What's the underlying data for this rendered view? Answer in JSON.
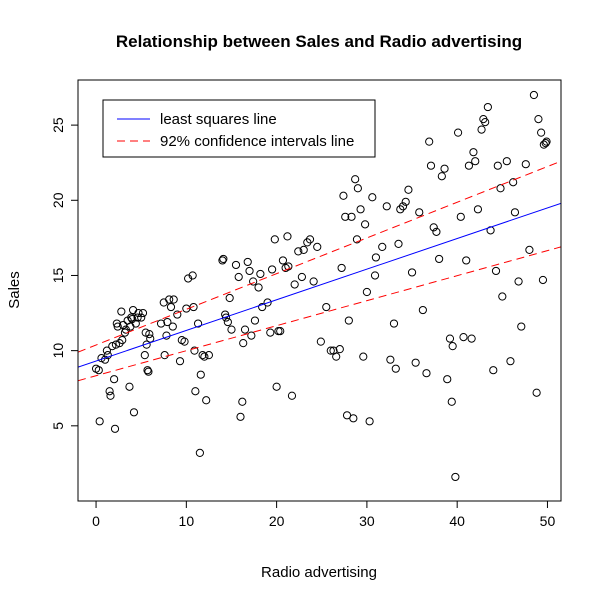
{
  "chart_data": {
    "type": "scatter",
    "title": "Relationship between Sales and Radio advertising",
    "xlabel": "Radio advertising",
    "ylabel": "Sales",
    "xlim": [
      -2,
      51.5
    ],
    "ylim": [
      0,
      28
    ],
    "xticks": [
      0,
      10,
      20,
      30,
      40,
      50
    ],
    "yticks": [
      5,
      10,
      15,
      20,
      25
    ],
    "grid": false,
    "legend_position": "top-left",
    "legend": [
      {
        "label": "least squares line",
        "color": "#0000ff",
        "style": "solid"
      },
      {
        "label": "92% confidence intervals line",
        "color": "#ff0000",
        "style": "dashed"
      }
    ],
    "lines": [
      {
        "name": "least squares line",
        "color": "#0000ff",
        "style": "solid",
        "points": [
          [
            -2,
            8.9
          ],
          [
            51.5,
            19.8
          ]
        ]
      },
      {
        "name": "upper 92% confidence interval",
        "color": "#ff0000",
        "style": "dashed",
        "points": [
          [
            -2,
            9.9
          ],
          [
            51.5,
            22.6
          ]
        ]
      },
      {
        "name": "lower 92% confidence interval",
        "color": "#ff0000",
        "style": "dashed",
        "points": [
          [
            -2,
            8.0
          ],
          [
            51.5,
            16.9
          ]
        ]
      }
    ],
    "series": [
      {
        "marker": "open-circle",
        "color": "#000000",
        "points": [
          [
            0.0,
            8.8
          ],
          [
            0.3,
            8.7
          ],
          [
            0.4,
            5.3
          ],
          [
            0.6,
            9.5
          ],
          [
            1.0,
            9.4
          ],
          [
            1.2,
            10.0
          ],
          [
            1.3,
            9.7
          ],
          [
            1.5,
            7.3
          ],
          [
            1.6,
            7.0
          ],
          [
            1.8,
            10.3
          ],
          [
            2.0,
            8.1
          ],
          [
            2.1,
            4.8
          ],
          [
            2.2,
            10.4
          ],
          [
            2.3,
            11.8
          ],
          [
            2.4,
            11.6
          ],
          [
            2.6,
            10.5
          ],
          [
            2.8,
            12.6
          ],
          [
            2.9,
            10.7
          ],
          [
            3.0,
            11.7
          ],
          [
            3.2,
            11.2
          ],
          [
            3.3,
            11.4
          ],
          [
            3.5,
            12.0
          ],
          [
            3.7,
            7.6
          ],
          [
            3.8,
            11.6
          ],
          [
            3.9,
            12.2
          ],
          [
            4.0,
            12.1
          ],
          [
            4.1,
            12.7
          ],
          [
            4.2,
            5.9
          ],
          [
            4.4,
            11.8
          ],
          [
            4.6,
            12.2
          ],
          [
            4.7,
            12.5
          ],
          [
            5.0,
            12.2
          ],
          [
            5.2,
            12.5
          ],
          [
            5.4,
            9.7
          ],
          [
            5.5,
            11.2
          ],
          [
            5.6,
            10.4
          ],
          [
            5.7,
            8.7
          ],
          [
            5.8,
            8.6
          ],
          [
            5.9,
            11.1
          ],
          [
            6.0,
            10.8
          ],
          [
            7.2,
            11.8
          ],
          [
            7.5,
            13.2
          ],
          [
            7.6,
            9.7
          ],
          [
            7.8,
            11.0
          ],
          [
            7.9,
            11.9
          ],
          [
            8.1,
            13.4
          ],
          [
            8.3,
            12.9
          ],
          [
            8.5,
            11.6
          ],
          [
            8.6,
            13.4
          ],
          [
            9.0,
            12.4
          ],
          [
            9.3,
            9.3
          ],
          [
            9.5,
            10.7
          ],
          [
            9.8,
            10.6
          ],
          [
            10.0,
            12.8
          ],
          [
            10.2,
            14.8
          ],
          [
            10.7,
            15.0
          ],
          [
            10.8,
            12.9
          ],
          [
            10.9,
            10.0
          ],
          [
            11.0,
            7.3
          ],
          [
            11.3,
            11.8
          ],
          [
            11.5,
            3.2
          ],
          [
            11.6,
            8.4
          ],
          [
            11.8,
            9.7
          ],
          [
            12.0,
            9.6
          ],
          [
            12.2,
            6.7
          ],
          [
            12.5,
            9.7
          ],
          [
            14.0,
            16.0
          ],
          [
            14.1,
            16.1
          ],
          [
            14.3,
            12.4
          ],
          [
            14.4,
            12.2
          ],
          [
            14.6,
            11.9
          ],
          [
            14.8,
            13.5
          ],
          [
            15.0,
            11.4
          ],
          [
            15.5,
            15.7
          ],
          [
            15.8,
            14.9
          ],
          [
            16.0,
            5.6
          ],
          [
            16.2,
            6.6
          ],
          [
            16.3,
            10.5
          ],
          [
            16.5,
            11.4
          ],
          [
            16.8,
            15.9
          ],
          [
            17.0,
            15.3
          ],
          [
            17.2,
            11.0
          ],
          [
            17.4,
            14.6
          ],
          [
            17.6,
            12.0
          ],
          [
            18.0,
            14.2
          ],
          [
            18.2,
            15.1
          ],
          [
            18.4,
            12.9
          ],
          [
            19.0,
            13.2
          ],
          [
            19.3,
            11.2
          ],
          [
            19.5,
            15.4
          ],
          [
            19.8,
            17.4
          ],
          [
            20.0,
            7.6
          ],
          [
            20.2,
            11.3
          ],
          [
            20.4,
            11.3
          ],
          [
            20.7,
            16.0
          ],
          [
            21.0,
            15.5
          ],
          [
            21.2,
            17.6
          ],
          [
            21.3,
            15.6
          ],
          [
            21.7,
            7.0
          ],
          [
            22.0,
            14.4
          ],
          [
            22.4,
            16.6
          ],
          [
            22.8,
            14.9
          ],
          [
            23.0,
            16.7
          ],
          [
            23.4,
            17.2
          ],
          [
            23.7,
            17.4
          ],
          [
            24.1,
            14.6
          ],
          [
            24.5,
            16.9
          ],
          [
            24.9,
            10.6
          ],
          [
            25.5,
            12.9
          ],
          [
            26.0,
            10.0
          ],
          [
            26.3,
            10.0
          ],
          [
            26.6,
            9.6
          ],
          [
            27.0,
            10.1
          ],
          [
            27.2,
            15.5
          ],
          [
            27.4,
            20.3
          ],
          [
            27.6,
            18.9
          ],
          [
            27.8,
            5.7
          ],
          [
            28.0,
            12.0
          ],
          [
            28.3,
            18.9
          ],
          [
            28.5,
            5.5
          ],
          [
            28.7,
            21.4
          ],
          [
            28.9,
            17.4
          ],
          [
            29.0,
            20.8
          ],
          [
            29.3,
            19.4
          ],
          [
            29.6,
            9.6
          ],
          [
            29.8,
            18.4
          ],
          [
            30.0,
            13.9
          ],
          [
            30.3,
            5.3
          ],
          [
            30.6,
            20.2
          ],
          [
            30.9,
            15.0
          ],
          [
            31.0,
            16.2
          ],
          [
            31.7,
            16.9
          ],
          [
            32.2,
            19.6
          ],
          [
            32.6,
            9.4
          ],
          [
            33.0,
            11.8
          ],
          [
            33.2,
            8.8
          ],
          [
            33.5,
            17.1
          ],
          [
            33.7,
            19.4
          ],
          [
            34.0,
            19.6
          ],
          [
            34.3,
            19.9
          ],
          [
            34.6,
            20.7
          ],
          [
            35.0,
            15.2
          ],
          [
            35.4,
            9.2
          ],
          [
            35.8,
            19.2
          ],
          [
            36.2,
            12.7
          ],
          [
            36.6,
            8.5
          ],
          [
            36.9,
            23.9
          ],
          [
            37.1,
            22.3
          ],
          [
            37.4,
            18.2
          ],
          [
            37.7,
            17.9
          ],
          [
            38.0,
            16.1
          ],
          [
            38.3,
            21.6
          ],
          [
            38.6,
            22.1
          ],
          [
            38.9,
            8.1
          ],
          [
            39.2,
            10.8
          ],
          [
            39.4,
            6.6
          ],
          [
            39.5,
            10.3
          ],
          [
            39.8,
            1.6
          ],
          [
            40.1,
            24.5
          ],
          [
            40.4,
            18.9
          ],
          [
            40.7,
            10.9
          ],
          [
            41.0,
            16.0
          ],
          [
            41.3,
            22.3
          ],
          [
            41.6,
            10.8
          ],
          [
            41.8,
            23.2
          ],
          [
            42.0,
            22.6
          ],
          [
            42.3,
            19.4
          ],
          [
            42.7,
            24.7
          ],
          [
            42.9,
            25.4
          ],
          [
            43.1,
            25.2
          ],
          [
            43.4,
            26.2
          ],
          [
            43.7,
            18.0
          ],
          [
            44.0,
            8.7
          ],
          [
            44.3,
            15.3
          ],
          [
            44.5,
            22.3
          ],
          [
            44.8,
            20.8
          ],
          [
            45.0,
            13.6
          ],
          [
            45.5,
            22.6
          ],
          [
            45.9,
            9.3
          ],
          [
            46.2,
            21.2
          ],
          [
            46.4,
            19.2
          ],
          [
            46.8,
            14.6
          ],
          [
            47.1,
            11.6
          ],
          [
            47.6,
            22.4
          ],
          [
            48.0,
            16.7
          ],
          [
            48.5,
            27.0
          ],
          [
            48.8,
            7.2
          ],
          [
            49.0,
            25.4
          ],
          [
            49.3,
            24.5
          ],
          [
            49.5,
            14.7
          ],
          [
            49.6,
            23.7
          ],
          [
            49.8,
            23.8
          ],
          [
            49.9,
            23.9
          ]
        ]
      }
    ]
  }
}
